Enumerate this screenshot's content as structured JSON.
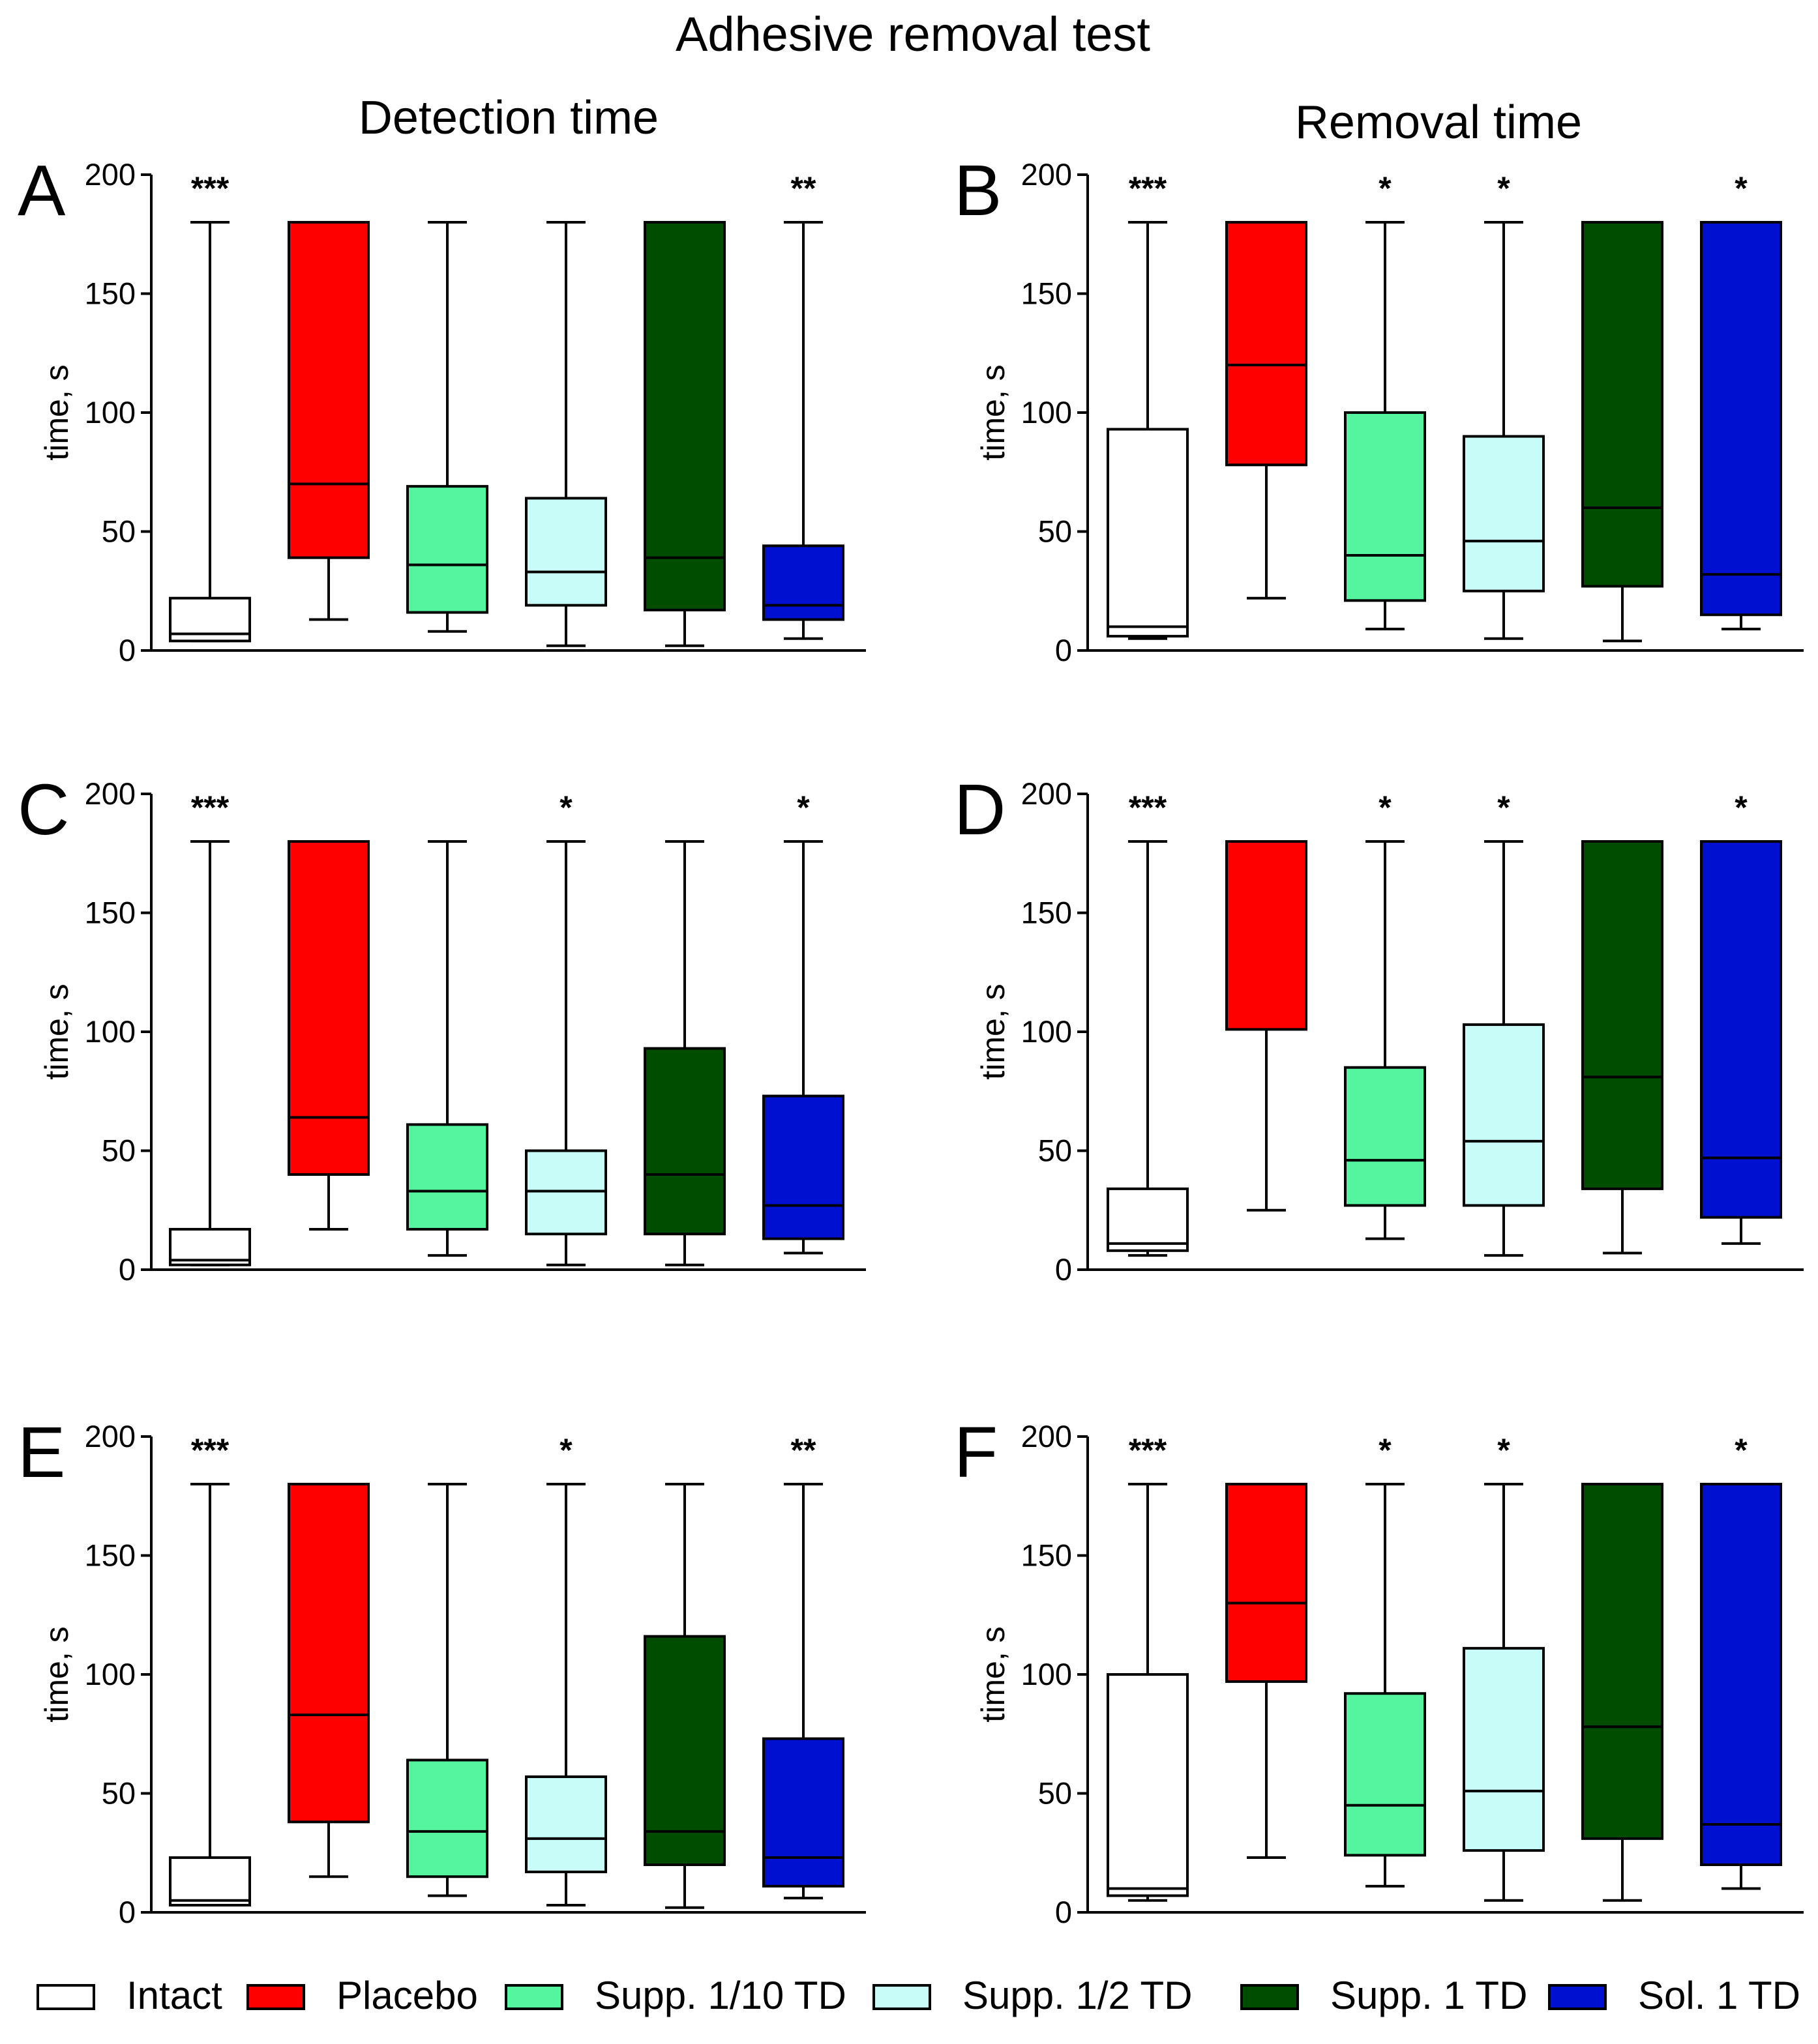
{
  "title": "Adhesive removal test",
  "column_titles": [
    "Detection time",
    "Removal time"
  ],
  "colors": {
    "Intact": "#ffffff",
    "Placebo": "#ff0000",
    "Supp. 1/10 TD": "#55f5a0",
    "Supp. 1/2 TD": "#c8fcf8",
    "Supp. 1 TD": "#004d00",
    "Sol. 1 TD": "#0010d0"
  },
  "legend": [
    "Intact",
    "Placebo",
    "Supp. 1/10 TD",
    "Supp. 1/2 TD",
    "Supp. 1 TD",
    "Sol. 1 TD"
  ],
  "chart_data": [
    {
      "type": "box",
      "panel": "A",
      "column": 0,
      "row": 0,
      "ylabel": "time, s",
      "ylim": [
        0,
        200
      ],
      "yticks": [
        0,
        50,
        100,
        150,
        200
      ],
      "groups": [
        {
          "name": "Intact",
          "min": 4,
          "q1": 4,
          "median": 7,
          "q3": 22,
          "max": 180,
          "sig": "***"
        },
        {
          "name": "Placebo",
          "min": 13,
          "q1": 39,
          "median": 70,
          "q3": 180,
          "max": 180,
          "sig": ""
        },
        {
          "name": "Supp. 1/10 TD",
          "min": 8,
          "q1": 16,
          "median": 36,
          "q3": 69,
          "max": 180,
          "sig": ""
        },
        {
          "name": "Supp. 1/2 TD",
          "min": 2,
          "q1": 19,
          "median": 33,
          "q3": 64,
          "max": 180,
          "sig": ""
        },
        {
          "name": "Supp. 1 TD",
          "min": 2,
          "q1": 17,
          "median": 39,
          "q3": 180,
          "max": 180,
          "sig": ""
        },
        {
          "name": "Sol. 1 TD",
          "min": 5,
          "q1": 13,
          "median": 19,
          "q3": 44,
          "max": 180,
          "sig": "**"
        }
      ]
    },
    {
      "type": "box",
      "panel": "B",
      "column": 1,
      "row": 0,
      "ylabel": "time, s",
      "ylim": [
        0,
        200
      ],
      "yticks": [
        0,
        50,
        100,
        150,
        200
      ],
      "groups": [
        {
          "name": "Intact",
          "min": 5,
          "q1": 6,
          "median": 10,
          "q3": 93,
          "max": 180,
          "sig": "***"
        },
        {
          "name": "Placebo",
          "min": 22,
          "q1": 78,
          "median": 120,
          "q3": 180,
          "max": 180,
          "sig": ""
        },
        {
          "name": "Supp. 1/10 TD",
          "min": 9,
          "q1": 21,
          "median": 40,
          "q3": 100,
          "max": 180,
          "sig": "*"
        },
        {
          "name": "Supp. 1/2 TD",
          "min": 5,
          "q1": 25,
          "median": 46,
          "q3": 90,
          "max": 180,
          "sig": "*"
        },
        {
          "name": "Supp. 1 TD",
          "min": 4,
          "q1": 27,
          "median": 60,
          "q3": 180,
          "max": 180,
          "sig": ""
        },
        {
          "name": "Sol. 1 TD",
          "min": 9,
          "q1": 15,
          "median": 32,
          "q3": 180,
          "max": 180,
          "sig": "*"
        }
      ]
    },
    {
      "type": "box",
      "panel": "C",
      "column": 0,
      "row": 1,
      "ylabel": "time, s",
      "ylim": [
        0,
        200
      ],
      "yticks": [
        0,
        50,
        100,
        150,
        200
      ],
      "groups": [
        {
          "name": "Intact",
          "min": 2,
          "q1": 2,
          "median": 4,
          "q3": 17,
          "max": 180,
          "sig": "***"
        },
        {
          "name": "Placebo",
          "min": 17,
          "q1": 40,
          "median": 64,
          "q3": 180,
          "max": 180,
          "sig": ""
        },
        {
          "name": "Supp. 1/10 TD",
          "min": 6,
          "q1": 17,
          "median": 33,
          "q3": 61,
          "max": 180,
          "sig": ""
        },
        {
          "name": "Supp. 1/2 TD",
          "min": 2,
          "q1": 15,
          "median": 33,
          "q3": 50,
          "max": 180,
          "sig": "*"
        },
        {
          "name": "Supp. 1 TD",
          "min": 2,
          "q1": 15,
          "median": 40,
          "q3": 93,
          "max": 180,
          "sig": ""
        },
        {
          "name": "Sol. 1 TD",
          "min": 7,
          "q1": 13,
          "median": 27,
          "q3": 73,
          "max": 180,
          "sig": "*"
        }
      ]
    },
    {
      "type": "box",
      "panel": "D",
      "column": 1,
      "row": 1,
      "ylabel": "time, s",
      "ylim": [
        0,
        200
      ],
      "yticks": [
        0,
        50,
        100,
        150,
        200
      ],
      "groups": [
        {
          "name": "Intact",
          "min": 6,
          "q1": 8,
          "median": 11,
          "q3": 34,
          "max": 180,
          "sig": "***"
        },
        {
          "name": "Placebo",
          "min": 25,
          "q1": 101,
          "median": 180,
          "q3": 180,
          "max": 180,
          "sig": ""
        },
        {
          "name": "Supp. 1/10 TD",
          "min": 13,
          "q1": 27,
          "median": 46,
          "q3": 85,
          "max": 180,
          "sig": "*"
        },
        {
          "name": "Supp. 1/2 TD",
          "min": 6,
          "q1": 27,
          "median": 54,
          "q3": 103,
          "max": 180,
          "sig": "*"
        },
        {
          "name": "Supp. 1 TD",
          "min": 7,
          "q1": 34,
          "median": 81,
          "q3": 180,
          "max": 180,
          "sig": ""
        },
        {
          "name": "Sol. 1 TD",
          "min": 11,
          "q1": 22,
          "median": 47,
          "q3": 180,
          "max": 180,
          "sig": "*"
        }
      ]
    },
    {
      "type": "box",
      "panel": "E",
      "column": 0,
      "row": 2,
      "ylabel": "time, s",
      "ylim": [
        0,
        200
      ],
      "yticks": [
        0,
        50,
        100,
        150,
        200
      ],
      "groups": [
        {
          "name": "Intact",
          "min": 3,
          "q1": 3,
          "median": 5,
          "q3": 23,
          "max": 180,
          "sig": "***"
        },
        {
          "name": "Placebo",
          "min": 15,
          "q1": 38,
          "median": 83,
          "q3": 180,
          "max": 180,
          "sig": ""
        },
        {
          "name": "Supp. 1/10 TD",
          "min": 7,
          "q1": 15,
          "median": 34,
          "q3": 64,
          "max": 180,
          "sig": ""
        },
        {
          "name": "Supp. 1/2 TD",
          "min": 3,
          "q1": 17,
          "median": 31,
          "q3": 57,
          "max": 180,
          "sig": "*"
        },
        {
          "name": "Supp. 1 TD",
          "min": 2,
          "q1": 20,
          "median": 34,
          "q3": 116,
          "max": 180,
          "sig": ""
        },
        {
          "name": "Sol. 1 TD",
          "min": 6,
          "q1": 11,
          "median": 23,
          "q3": 73,
          "max": 180,
          "sig": "**"
        }
      ]
    },
    {
      "type": "box",
      "panel": "F",
      "column": 1,
      "row": 2,
      "ylabel": "time, s",
      "ylim": [
        0,
        200
      ],
      "yticks": [
        0,
        50,
        100,
        150,
        200
      ],
      "groups": [
        {
          "name": "Intact",
          "min": 5,
          "q1": 7,
          "median": 10,
          "q3": 100,
          "max": 180,
          "sig": "***"
        },
        {
          "name": "Placebo",
          "min": 23,
          "q1": 97,
          "median": 130,
          "q3": 180,
          "max": 180,
          "sig": ""
        },
        {
          "name": "Supp. 1/10 TD",
          "min": 11,
          "q1": 24,
          "median": 45,
          "q3": 92,
          "max": 180,
          "sig": "*"
        },
        {
          "name": "Supp. 1/2 TD",
          "min": 5,
          "q1": 26,
          "median": 51,
          "q3": 111,
          "max": 180,
          "sig": "*"
        },
        {
          "name": "Supp. 1 TD",
          "min": 5,
          "q1": 31,
          "median": 78,
          "q3": 180,
          "max": 180,
          "sig": ""
        },
        {
          "name": "Sol. 1 TD",
          "min": 10,
          "q1": 20,
          "median": 37,
          "q3": 180,
          "max": 180,
          "sig": "*"
        }
      ]
    }
  ]
}
